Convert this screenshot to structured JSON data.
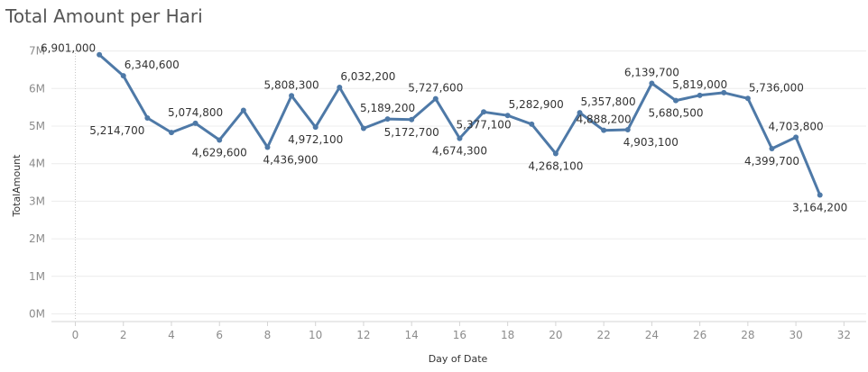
{
  "chart_data": {
    "type": "line",
    "title": "Total Amount per Hari",
    "xlabel": "Day of Date",
    "ylabel": "TotalAmount",
    "xlim": [
      -1,
      33
    ],
    "ylim": [
      0,
      7000000
    ],
    "x_ticks": [
      0,
      2,
      4,
      6,
      8,
      10,
      12,
      14,
      16,
      18,
      20,
      22,
      24,
      26,
      28,
      30,
      32
    ],
    "y_ticks": [
      {
        "value": 0,
        "label": "0M"
      },
      {
        "value": 1000000,
        "label": "1M"
      },
      {
        "value": 2000000,
        "label": "2M"
      },
      {
        "value": 3000000,
        "label": "3M"
      },
      {
        "value": 4000000,
        "label": "4M"
      },
      {
        "value": 5000000,
        "label": "5M"
      },
      {
        "value": 6000000,
        "label": "6M"
      },
      {
        "value": 7000000,
        "label": "7M"
      }
    ],
    "grid": true,
    "color": "#4e79a7",
    "series": [
      {
        "points": [
          {
            "x": 1,
            "y": 6901000,
            "label": "6,901,000",
            "pos": "tl"
          },
          {
            "x": 2,
            "y": 6340600,
            "label": "6,340,600",
            "pos": "tr"
          },
          {
            "x": 3,
            "y": 5214700,
            "label": "5,214,700",
            "pos": "bl"
          },
          {
            "x": 4,
            "y": 4830000,
            "label": "",
            "pos": ""
          },
          {
            "x": 5,
            "y": 5074800,
            "label": "5,074,800",
            "pos": "t"
          },
          {
            "x": 6,
            "y": 4629600,
            "label": "4,629,600",
            "pos": "b"
          },
          {
            "x": 7,
            "y": 5420000,
            "label": "",
            "pos": ""
          },
          {
            "x": 8,
            "y": 4436900,
            "label": "4,436,900",
            "pos": "br"
          },
          {
            "x": 9,
            "y": 5808300,
            "label": "5,808,300",
            "pos": "t"
          },
          {
            "x": 10,
            "y": 4972100,
            "label": "4,972,100",
            "pos": "b"
          },
          {
            "x": 11,
            "y": 6032200,
            "label": "6,032,200",
            "pos": "tr"
          },
          {
            "x": 12,
            "y": 4940000,
            "label": "",
            "pos": ""
          },
          {
            "x": 13,
            "y": 5189200,
            "label": "5,189,200",
            "pos": "t"
          },
          {
            "x": 14,
            "y": 5172700,
            "label": "5,172,700",
            "pos": "b"
          },
          {
            "x": 15,
            "y": 5727600,
            "label": "5,727,600",
            "pos": "t"
          },
          {
            "x": 16,
            "y": 4674300,
            "label": "4,674,300",
            "pos": "b"
          },
          {
            "x": 17,
            "y": 5377100,
            "label": "5,377,100",
            "pos": "b"
          },
          {
            "x": 18,
            "y": 5282900,
            "label": "5,282,900",
            "pos": "tr"
          },
          {
            "x": 19,
            "y": 5050000,
            "label": "",
            "pos": ""
          },
          {
            "x": 20,
            "y": 4268100,
            "label": "4,268,100",
            "pos": "b"
          },
          {
            "x": 21,
            "y": 5357800,
            "label": "5,357,800",
            "pos": "tr"
          },
          {
            "x": 22,
            "y": 4888200,
            "label": "4,888,200",
            "pos": "t"
          },
          {
            "x": 23,
            "y": 4903100,
            "label": "4,903,100",
            "pos": "br"
          },
          {
            "x": 24,
            "y": 6139700,
            "label": "6,139,700",
            "pos": "t"
          },
          {
            "x": 25,
            "y": 5680500,
            "label": "5,680,500",
            "pos": "b"
          },
          {
            "x": 26,
            "y": 5819000,
            "label": "5,819,000",
            "pos": "t"
          },
          {
            "x": 27,
            "y": 5890000,
            "label": "",
            "pos": ""
          },
          {
            "x": 28,
            "y": 5736000,
            "label": "5,736,000",
            "pos": "tr"
          },
          {
            "x": 29,
            "y": 4399700,
            "label": "4,399,700",
            "pos": "b"
          },
          {
            "x": 30,
            "y": 4703800,
            "label": "4,703,800",
            "pos": "t"
          },
          {
            "x": 31,
            "y": 3164200,
            "label": "3,164,200",
            "pos": "b"
          }
        ]
      }
    ]
  }
}
